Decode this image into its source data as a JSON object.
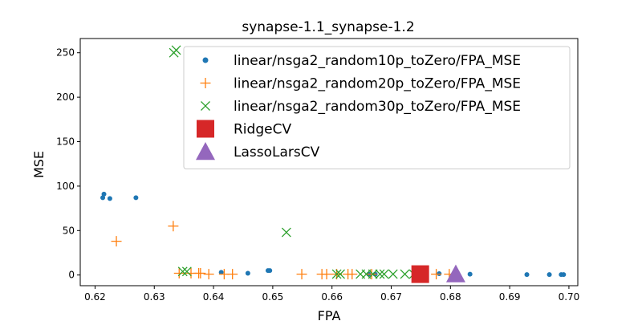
{
  "chart_data": {
    "type": "scatter",
    "title": "synapse-1.1_synapse-1.2",
    "xlabel": "FPA",
    "ylabel": "MSE",
    "xlim": [
      0.6175,
      0.7015
    ],
    "ylim": [
      -12,
      266
    ],
    "xticks": [
      0.62,
      0.63,
      0.64,
      0.65,
      0.66,
      0.67,
      0.68,
      0.69,
      0.7
    ],
    "xtick_labels": [
      "0.62",
      "0.63",
      "0.64",
      "0.65",
      "0.66",
      "0.67",
      "0.68",
      "0.69",
      "0.70"
    ],
    "yticks": [
      0,
      50,
      100,
      150,
      200,
      250
    ],
    "ytick_labels": [
      "0",
      "50",
      "100",
      "150",
      "200",
      "250"
    ],
    "grid": false,
    "legend_position": "top-right",
    "series": [
      {
        "name": "linear/nsga2_random10p_toZero/FPA_MSE",
        "marker": "dot",
        "color": "#1f77b4",
        "points": [
          [
            0.6213,
            87
          ],
          [
            0.6215,
            91
          ],
          [
            0.6225,
            86
          ],
          [
            0.6269,
            87
          ],
          [
            0.6413,
            3
          ],
          [
            0.6458,
            2
          ],
          [
            0.6492,
            5
          ],
          [
            0.6495,
            5
          ],
          [
            0.6662,
            1
          ],
          [
            0.6673,
            1
          ],
          [
            0.6781,
            1.5
          ],
          [
            0.6833,
            1
          ],
          [
            0.6929,
            0.5
          ],
          [
            0.6967,
            0.5
          ],
          [
            0.6987,
            0.5
          ],
          [
            0.6991,
            0.5
          ]
        ]
      },
      {
        "name": "linear/nsga2_random20p_toZero/FPA_MSE",
        "marker": "plus",
        "color": "#ff7f0e",
        "points": [
          [
            0.6236,
            38
          ],
          [
            0.6332,
            55
          ],
          [
            0.6342,
            2
          ],
          [
            0.6362,
            2
          ],
          [
            0.6375,
            2
          ],
          [
            0.6378,
            2
          ],
          [
            0.6392,
            1
          ],
          [
            0.6418,
            1
          ],
          [
            0.6432,
            1
          ],
          [
            0.6549,
            1
          ],
          [
            0.6583,
            1
          ],
          [
            0.6591,
            1
          ],
          [
            0.6608,
            1
          ],
          [
            0.6627,
            1
          ],
          [
            0.6634,
            1
          ],
          [
            0.6667,
            1
          ],
          [
            0.6776,
            1
          ],
          [
            0.6798,
            1
          ]
        ]
      },
      {
        "name": "linear/nsga2_random30p_toZero/FPA_MSE",
        "marker": "x",
        "color": "#2ca02c",
        "points": [
          [
            0.6333,
            250
          ],
          [
            0.6337,
            253
          ],
          [
            0.6348,
            4
          ],
          [
            0.6355,
            4
          ],
          [
            0.6523,
            48
          ],
          [
            0.6608,
            1
          ],
          [
            0.6614,
            1
          ],
          [
            0.6648,
            1
          ],
          [
            0.6658,
            1
          ],
          [
            0.6669,
            1
          ],
          [
            0.6681,
            1
          ],
          [
            0.6688,
            1
          ],
          [
            0.6703,
            1
          ],
          [
            0.6723,
            1
          ],
          [
            0.6738,
            1
          ]
        ]
      },
      {
        "name": "RidgeCV",
        "marker": "square",
        "color": "#d62728",
        "points": [
          [
            0.6749,
            1
          ]
        ]
      },
      {
        "name": "LassoLarsCV",
        "marker": "triangle",
        "color": "#9467bd",
        "points": [
          [
            0.6809,
            1
          ]
        ]
      }
    ]
  }
}
